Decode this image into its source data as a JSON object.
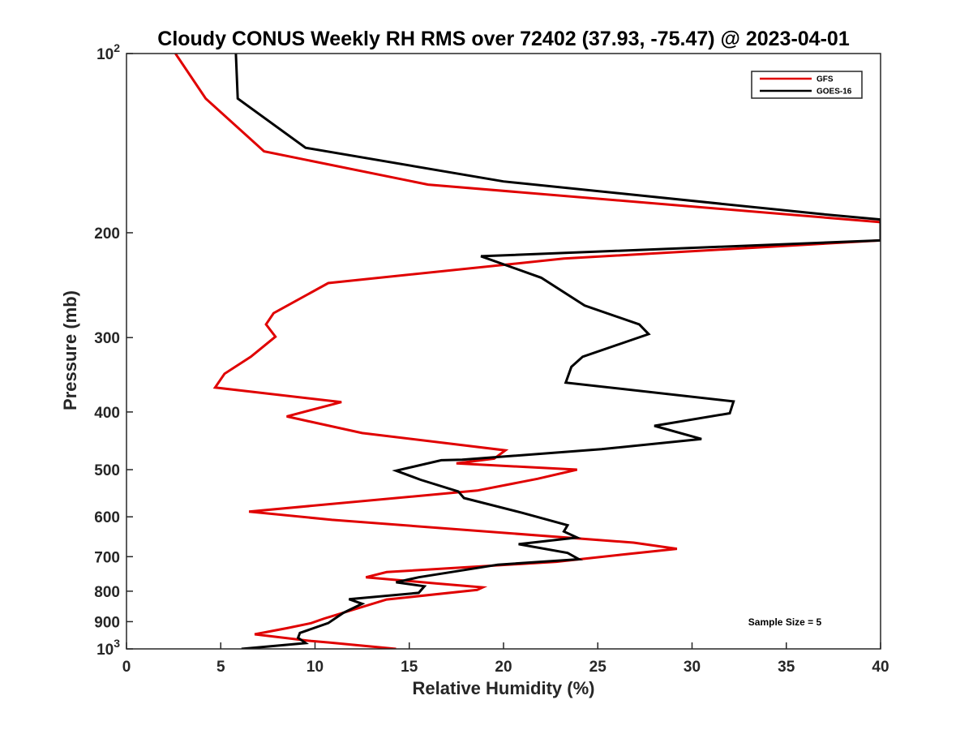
{
  "chart_data": {
    "type": "line",
    "title": "Cloudy CONUS Weekly RH RMS over 72402 (37.93, -75.47) @ 2023-04-01",
    "xlabel": "Relative Humidity (%)",
    "ylabel": "Pressure (mb)",
    "xlim": [
      0,
      40
    ],
    "ylim": [
      100,
      1000
    ],
    "y_scale": "log",
    "y_reversed": true,
    "grid": false,
    "legend_position": "top-right",
    "x_ticks": [
      "0",
      "5",
      "10",
      "15",
      "20",
      "25",
      "30",
      "35",
      "40"
    ],
    "y_ticks": [
      {
        "value": 100,
        "base": "10",
        "exp": "2"
      },
      {
        "value": 200,
        "label": "200"
      },
      {
        "value": 300,
        "label": "300"
      },
      {
        "value": 400,
        "label": "400"
      },
      {
        "value": 500,
        "label": "500"
      },
      {
        "value": 600,
        "label": "600"
      },
      {
        "value": 700,
        "label": "700"
      },
      {
        "value": 800,
        "label": "800"
      },
      {
        "value": 900,
        "label": "900"
      },
      {
        "value": 1000,
        "base": "10",
        "exp": "3"
      }
    ],
    "annotation": "Sample Size = 5",
    "series": [
      {
        "name": "GFS",
        "color": "#e00000",
        "points": [
          [
            2.6,
            100
          ],
          [
            4.2,
            119
          ],
          [
            7.3,
            146
          ],
          [
            16.0,
            166
          ],
          [
            40,
            192
          ],
          [
            40,
            206
          ],
          [
            23.2,
            221
          ],
          [
            10.7,
            243
          ],
          [
            7.8,
            273
          ],
          [
            7.4,
            285
          ],
          [
            7.9,
            299
          ],
          [
            6.6,
            323
          ],
          [
            5.2,
            345
          ],
          [
            4.7,
            364
          ],
          [
            11.4,
            385
          ],
          [
            8.5,
            407
          ],
          [
            12.5,
            434
          ],
          [
            20.1,
            464
          ],
          [
            19.5,
            479
          ],
          [
            17.5,
            488
          ],
          [
            23.9,
            500
          ],
          [
            21.8,
            518
          ],
          [
            18.6,
            542
          ],
          [
            6.5,
            588
          ],
          [
            10.9,
            607
          ],
          [
            26.9,
            663
          ],
          [
            29.2,
            679
          ],
          [
            26.2,
            695
          ],
          [
            22.8,
            714
          ],
          [
            13.8,
            743
          ],
          [
            12.7,
            758
          ],
          [
            16.4,
            776
          ],
          [
            18.9,
            788
          ],
          [
            18.6,
            796
          ],
          [
            13.8,
            826
          ],
          [
            10.5,
            889
          ],
          [
            9.8,
            905
          ],
          [
            8.5,
            923
          ],
          [
            6.8,
            945
          ],
          [
            9.8,
            970
          ],
          [
            10.8,
            976
          ],
          [
            14.3,
            1000
          ]
        ]
      },
      {
        "name": "GOES-16",
        "color": "#000000",
        "points": [
          [
            5.8,
            100
          ],
          [
            5.9,
            119
          ],
          [
            9.5,
            144
          ],
          [
            20.0,
            164
          ],
          [
            36.8,
            186
          ],
          [
            40,
            190
          ],
          [
            40,
            206
          ],
          [
            18.8,
            219
          ],
          [
            22.0,
            238
          ],
          [
            24.3,
            265
          ],
          [
            27.2,
            285
          ],
          [
            27.7,
            296
          ],
          [
            24.2,
            323
          ],
          [
            23.6,
            336
          ],
          [
            23.3,
            357
          ],
          [
            32.2,
            384
          ],
          [
            32.0,
            402
          ],
          [
            28.0,
            422
          ],
          [
            30.5,
            444
          ],
          [
            25.2,
            462
          ],
          [
            17.8,
            481
          ],
          [
            16.7,
            482
          ],
          [
            14.3,
            502
          ],
          [
            15.6,
            520
          ],
          [
            17.6,
            544
          ],
          [
            17.9,
            558
          ],
          [
            21.0,
            591
          ],
          [
            23.4,
            620
          ],
          [
            23.2,
            635
          ],
          [
            23.9,
            650
          ],
          [
            20.8,
            667
          ],
          [
            23.4,
            690
          ],
          [
            24.0,
            707
          ],
          [
            19.7,
            722
          ],
          [
            15.5,
            758
          ],
          [
            14.3,
            773
          ],
          [
            15.8,
            785
          ],
          [
            15.5,
            805
          ],
          [
            11.8,
            825
          ],
          [
            12.5,
            840
          ],
          [
            11.5,
            870
          ],
          [
            10.7,
            905
          ],
          [
            9.2,
            940
          ],
          [
            9.1,
            958
          ],
          [
            9.5,
            978
          ],
          [
            6.1,
            1000
          ]
        ]
      }
    ]
  }
}
